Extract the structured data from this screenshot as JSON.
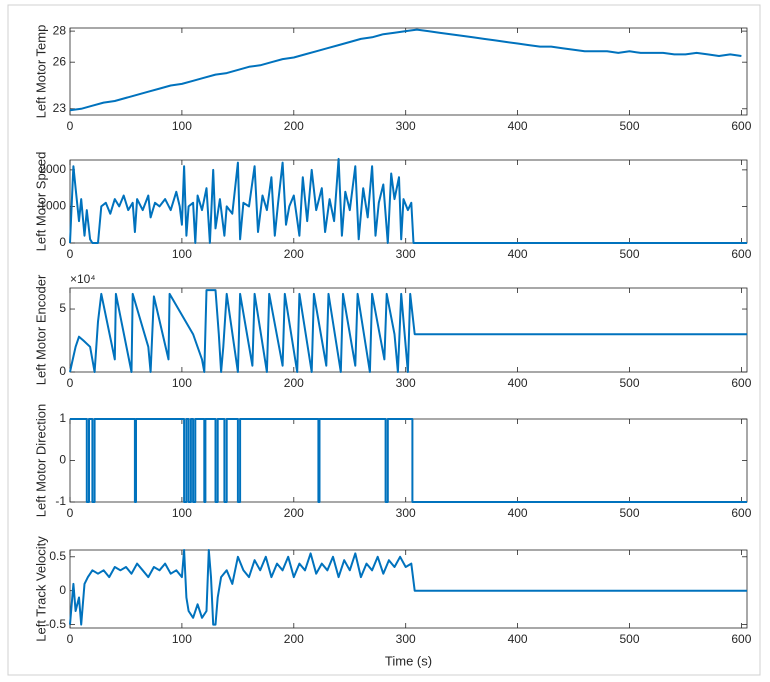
{
  "chart_data": [
    {
      "type": "line",
      "ylabel": "Left Motor Temp",
      "color": "#0072bd",
      "x": [
        0,
        10,
        20,
        30,
        40,
        50,
        60,
        70,
        80,
        90,
        100,
        110,
        120,
        130,
        140,
        150,
        160,
        170,
        180,
        190,
        200,
        210,
        220,
        230,
        240,
        250,
        260,
        270,
        280,
        290,
        300,
        310,
        320,
        330,
        340,
        350,
        360,
        370,
        380,
        390,
        400,
        410,
        420,
        430,
        440,
        450,
        460,
        470,
        480,
        490,
        500,
        510,
        520,
        530,
        540,
        550,
        560,
        570,
        580,
        590,
        600
      ],
      "values": [
        22.9,
        23.0,
        23.2,
        23.4,
        23.5,
        23.7,
        23.9,
        24.1,
        24.3,
        24.5,
        24.6,
        24.8,
        25.0,
        25.2,
        25.3,
        25.5,
        25.7,
        25.8,
        26.0,
        26.2,
        26.3,
        26.5,
        26.7,
        26.9,
        27.1,
        27.3,
        27.5,
        27.6,
        27.8,
        27.9,
        28.0,
        28.1,
        28.0,
        27.9,
        27.8,
        27.7,
        27.6,
        27.5,
        27.4,
        27.3,
        27.2,
        27.1,
        27.0,
        27.0,
        26.9,
        26.8,
        26.7,
        26.7,
        26.7,
        26.6,
        26.7,
        26.6,
        26.6,
        26.6,
        26.5,
        26.5,
        26.6,
        26.5,
        26.4,
        26.5,
        26.4
      ],
      "xlim": [
        0,
        605
      ],
      "xticks": [
        0,
        100,
        200,
        300,
        400,
        500,
        600
      ],
      "ylim": [
        22.6,
        28.2
      ],
      "yticks": [
        23,
        26,
        28
      ]
    },
    {
      "type": "line",
      "ylabel": "Left Motor Speed",
      "color": "#0072bd",
      "x": [
        0,
        3,
        5,
        8,
        10,
        13,
        15,
        18,
        20,
        25,
        28,
        32,
        36,
        40,
        44,
        48,
        52,
        56,
        58,
        60,
        65,
        70,
        72,
        76,
        80,
        85,
        90,
        95,
        98,
        100,
        102,
        104,
        106,
        110,
        112,
        114,
        118,
        122,
        125,
        128,
        130,
        134,
        138,
        140,
        145,
        150,
        152,
        155,
        160,
        165,
        168,
        172,
        176,
        180,
        183,
        186,
        190,
        193,
        196,
        200,
        205,
        208,
        212,
        216,
        220,
        225,
        228,
        232,
        236,
        240,
        243,
        246,
        250,
        255,
        258,
        262,
        266,
        270,
        273,
        276,
        280,
        284,
        287,
        290,
        294,
        296,
        298,
        302,
        305,
        307,
        605
      ],
      "values": [
        0,
        2100,
        1500,
        600,
        1200,
        200,
        900,
        100,
        0,
        0,
        1000,
        1100,
        800,
        1200,
        1000,
        1300,
        900,
        1100,
        300,
        1200,
        900,
        1300,
        700,
        1100,
        1000,
        1200,
        900,
        1400,
        1000,
        500,
        2100,
        200,
        1000,
        1100,
        0,
        1300,
        900,
        1500,
        0,
        2000,
        400,
        1200,
        200,
        1000,
        800,
        2200,
        100,
        1100,
        1000,
        2100,
        300,
        1300,
        900,
        1800,
        200,
        1100,
        2200,
        500,
        1000,
        1300,
        200,
        1800,
        600,
        2000,
        900,
        1500,
        300,
        1200,
        600,
        2300,
        200,
        1400,
        900,
        2100,
        100,
        1500,
        700,
        2100,
        200,
        1100,
        1600,
        0,
        1900,
        1200,
        1800,
        100,
        1200,
        900,
        1100,
        0,
        0
      ],
      "xlim": [
        0,
        605
      ],
      "xticks": [
        0,
        100,
        200,
        300,
        400,
        500,
        600
      ],
      "ylim": [
        0,
        2270
      ],
      "yticks": [
        0,
        1000,
        2000
      ]
    },
    {
      "type": "line",
      "ylabel": "Left Motor Encoder",
      "color": "#0072bd",
      "annotation": "×10⁴",
      "x": [
        0,
        2,
        5,
        8,
        12,
        18,
        22,
        25,
        28,
        40,
        41,
        55,
        56,
        70,
        72,
        75,
        88,
        89,
        110,
        118,
        120,
        122,
        130,
        133,
        135,
        137,
        140,
        150,
        152,
        163,
        165,
        176,
        178,
        190,
        192,
        203,
        205,
        216,
        218,
        229,
        231,
        242,
        244,
        255,
        257,
        268,
        270,
        281,
        283,
        290,
        293,
        296,
        302,
        304,
        308,
        605
      ],
      "values": [
        0,
        8000,
        20000,
        28000,
        25000,
        20000,
        0,
        40000,
        62000,
        10000,
        62000,
        0,
        62000,
        20000,
        0,
        60000,
        10000,
        62000,
        30000,
        10000,
        0,
        65000,
        65000,
        30000,
        0,
        20000,
        62000,
        0,
        62000,
        5000,
        62000,
        0,
        62000,
        5000,
        62000,
        0,
        62000,
        0,
        62000,
        5000,
        62000,
        0,
        62000,
        5000,
        62000,
        0,
        62000,
        10000,
        62000,
        30000,
        0,
        62000,
        0,
        62000,
        30000,
        30000
      ],
      "xlim": [
        0,
        605
      ],
      "xticks": [
        0,
        100,
        200,
        300,
        400,
        500,
        600
      ],
      "ylim": [
        0,
        66700
      ],
      "yticks": [
        0,
        {
          "value": 50000,
          "label": "5"
        }
      ]
    },
    {
      "type": "line",
      "ylabel": "Left Motor Direction",
      "color": "#0072bd",
      "x": [
        0,
        15,
        15,
        17,
        17,
        20,
        20,
        22,
        22,
        58,
        58,
        59,
        59,
        102,
        102,
        104,
        104,
        106,
        106,
        108,
        108,
        110,
        110,
        112,
        112,
        120,
        120,
        121,
        121,
        130,
        130,
        132,
        132,
        138,
        138,
        140,
        140,
        150,
        150,
        152,
        152,
        222,
        222,
        223,
        223,
        282,
        282,
        284,
        284,
        306,
        306,
        605
      ],
      "values": [
        1,
        1,
        -1,
        -1,
        1,
        1,
        -1,
        -1,
        1,
        1,
        -1,
        -1,
        1,
        1,
        -1,
        -1,
        1,
        1,
        -1,
        -1,
        1,
        1,
        -1,
        -1,
        1,
        1,
        -1,
        -1,
        1,
        1,
        -1,
        -1,
        1,
        1,
        -1,
        -1,
        1,
        1,
        -1,
        -1,
        1,
        1,
        -1,
        -1,
        1,
        1,
        -1,
        -1,
        1,
        1,
        -1,
        -1
      ],
      "xlim": [
        0,
        605
      ],
      "xticks": [
        0,
        100,
        200,
        300,
        400,
        500,
        600
      ],
      "ylim": [
        -1,
        1
      ],
      "yticks": [
        -1,
        0,
        1
      ]
    },
    {
      "type": "line",
      "ylabel": "Left Track Velocity",
      "xlabel": "Time (s)",
      "color": "#0072bd",
      "x": [
        0,
        3,
        5,
        8,
        10,
        13,
        16,
        20,
        25,
        30,
        35,
        40,
        45,
        50,
        55,
        60,
        65,
        70,
        75,
        80,
        85,
        90,
        95,
        100,
        102,
        104,
        106,
        110,
        114,
        118,
        122,
        124,
        126,
        128,
        130,
        132,
        135,
        140,
        145,
        150,
        155,
        160,
        165,
        170,
        175,
        180,
        185,
        190,
        195,
        200,
        205,
        210,
        215,
        220,
        225,
        230,
        235,
        240,
        245,
        250,
        255,
        260,
        265,
        270,
        275,
        280,
        285,
        290,
        295,
        300,
        305,
        308,
        605
      ],
      "values": [
        -0.5,
        0.1,
        -0.3,
        -0.1,
        -0.5,
        0.1,
        0.2,
        0.3,
        0.25,
        0.3,
        0.2,
        0.35,
        0.3,
        0.35,
        0.25,
        0.4,
        0.3,
        0.2,
        0.35,
        0.3,
        0.4,
        0.25,
        0.3,
        0.2,
        0.6,
        -0.1,
        -0.3,
        -0.4,
        -0.2,
        -0.4,
        -0.3,
        0.6,
        0.2,
        -0.5,
        -0.5,
        -0.1,
        0.2,
        0.3,
        0.1,
        0.5,
        0.3,
        0.2,
        0.45,
        0.3,
        0.5,
        0.2,
        0.4,
        0.3,
        0.5,
        0.2,
        0.4,
        0.3,
        0.55,
        0.25,
        0.4,
        0.3,
        0.5,
        0.2,
        0.45,
        0.3,
        0.55,
        0.2,
        0.4,
        0.3,
        0.5,
        0.25,
        0.45,
        0.35,
        0.5,
        0.35,
        0.4,
        0,
        0
      ],
      "xlim": [
        0,
        605
      ],
      "xticks": [
        0,
        100,
        200,
        300,
        400,
        500,
        600
      ],
      "ylim": [
        -0.55,
        0.6
      ],
      "yticks": [
        -0.5,
        0,
        0.5
      ]
    }
  ]
}
